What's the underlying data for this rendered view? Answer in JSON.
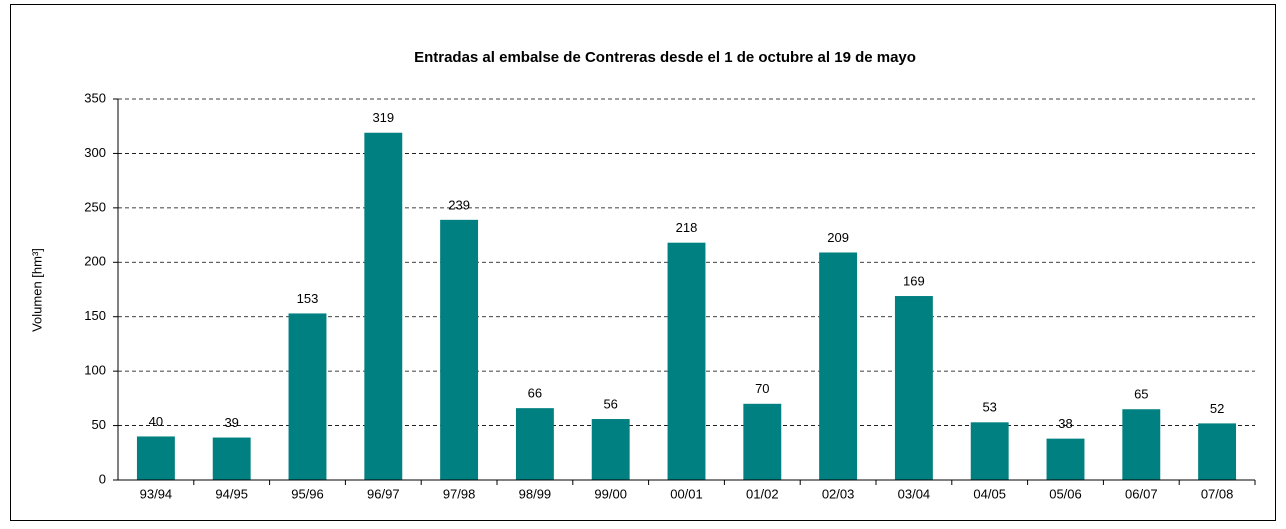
{
  "chart_data": {
    "type": "bar",
    "title": "Entradas al embalse de Contreras desde el 1 de octubre al 19 de mayo",
    "y_label": "Volumen [hm³]",
    "categories": [
      "93/94",
      "94/95",
      "95/96",
      "96/97",
      "97/98",
      "98/99",
      "99/00",
      "00/01",
      "01/02",
      "02/03",
      "03/04",
      "04/05",
      "05/06",
      "06/07",
      "07/08"
    ],
    "values": [
      40,
      39,
      153,
      319,
      239,
      66,
      56,
      218,
      70,
      209,
      169,
      53,
      38,
      65,
      52
    ],
    "color": "#008080",
    "ylim": [
      0,
      350
    ],
    "yticks": [
      0,
      50,
      100,
      150,
      200,
      250,
      300,
      350
    ],
    "grid": true
  }
}
